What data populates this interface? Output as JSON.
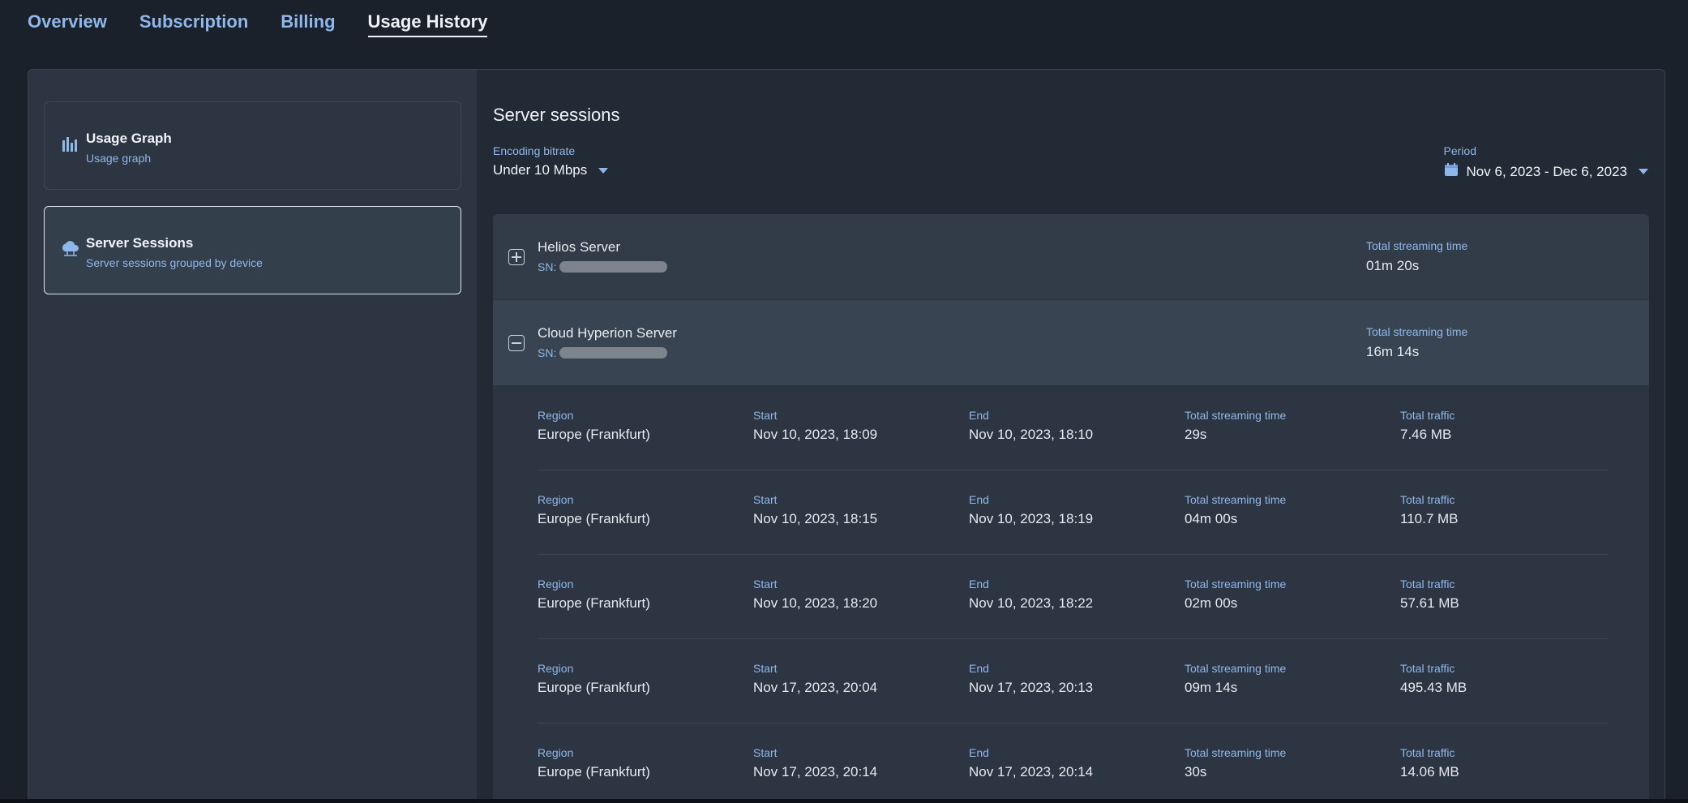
{
  "tabs": [
    {
      "label": "Overview"
    },
    {
      "label": "Subscription"
    },
    {
      "label": "Billing"
    },
    {
      "label": "Usage History"
    }
  ],
  "sidebar": {
    "items": [
      {
        "title": "Usage Graph",
        "subtitle": "Usage graph",
        "icon": "bar-chart-icon"
      },
      {
        "title": "Server Sessions",
        "subtitle": "Server sessions grouped by device",
        "icon": "cloud-icon"
      }
    ]
  },
  "main": {
    "title": "Server sessions",
    "bitrate": {
      "label": "Encoding bitrate",
      "value": "Under 10 Mbps"
    },
    "period": {
      "label": "Period",
      "value": "Nov 6, 2023 - Dec 6, 2023"
    }
  },
  "devices": [
    {
      "name": "Helios Server",
      "sn_label": "SN:",
      "total_label": "Total streaming time",
      "total": "01m 20s"
    },
    {
      "name": "Cloud Hyperion Server",
      "sn_label": "SN:",
      "total_label": "Total streaming time",
      "total": "16m 14s"
    }
  ],
  "session_labels": {
    "region": "Region",
    "start": "Start",
    "end": "End",
    "time": "Total streaming time",
    "traffic": "Total traffic"
  },
  "sessions": [
    {
      "region": "Europe (Frankfurt)",
      "start": "Nov 10, 2023, 18:09",
      "end": "Nov 10, 2023, 18:10",
      "time": "29s",
      "traffic": "7.46 MB"
    },
    {
      "region": "Europe (Frankfurt)",
      "start": "Nov 10, 2023, 18:15",
      "end": "Nov 10, 2023, 18:19",
      "time": "04m 00s",
      "traffic": "110.7 MB"
    },
    {
      "region": "Europe (Frankfurt)",
      "start": "Nov 10, 2023, 18:20",
      "end": "Nov 10, 2023, 18:22",
      "time": "02m 00s",
      "traffic": "57.61 MB"
    },
    {
      "region": "Europe (Frankfurt)",
      "start": "Nov 17, 2023, 20:04",
      "end": "Nov 17, 2023, 20:13",
      "time": "09m 14s",
      "traffic": "495.43 MB"
    },
    {
      "region": "Europe (Frankfurt)",
      "start": "Nov 17, 2023, 20:14",
      "end": "Nov 17, 2023, 20:14",
      "time": "30s",
      "traffic": "14.06 MB"
    }
  ],
  "colors": {
    "accent": "#8fb7ea",
    "background": "#1b212b",
    "panel": "#2c3541"
  }
}
